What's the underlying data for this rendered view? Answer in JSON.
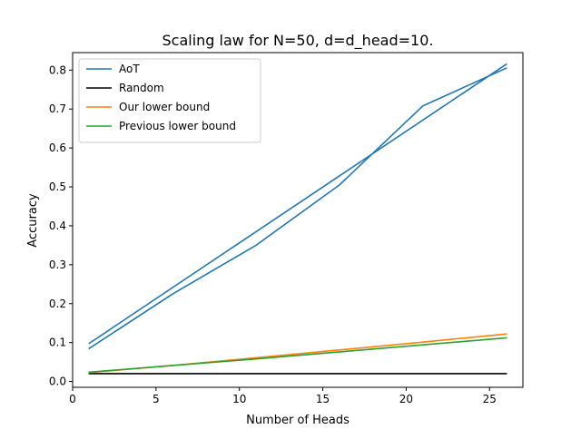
{
  "chart_data": {
    "type": "line",
    "title": "Scaling law for N=50, d=d_head=10.",
    "xlabel": "Number of Heads",
    "ylabel": "Accuracy",
    "xlim": [
      0,
      27
    ],
    "ylim": [
      -0.015,
      0.845
    ],
    "xticks": [
      0,
      5,
      10,
      15,
      20,
      25
    ],
    "yticks": [
      0.0,
      0.1,
      0.2,
      0.3,
      0.4,
      0.5,
      0.6,
      0.7,
      0.8
    ],
    "grid": false,
    "legend_position": "top-left",
    "series": [
      {
        "name": "AoT",
        "color": "#1f77b4",
        "x": [
          1,
          6,
          11,
          16,
          21,
          26
        ],
        "y": [
          0.085,
          0.225,
          0.35,
          0.505,
          0.708,
          0.805
        ]
      },
      {
        "name": "",
        "color": "#1f77b4",
        "x": [
          1,
          26
        ],
        "y": [
          0.098,
          0.815
        ]
      },
      {
        "name": "Random",
        "color": "#000000",
        "x": [
          1,
          26
        ],
        "y": [
          0.02,
          0.02
        ]
      },
      {
        "name": "Our lower bound",
        "color": "#ff7f0e",
        "x": [
          1,
          6,
          11,
          16,
          21,
          26
        ],
        "y": [
          0.023,
          0.041,
          0.061,
          0.081,
          0.101,
          0.122
        ]
      },
      {
        "name": "Previous lower bound",
        "color": "#2ca02c",
        "x": [
          1,
          6,
          11,
          16,
          21,
          26
        ],
        "y": [
          0.024,
          0.041,
          0.058,
          0.076,
          0.094,
          0.112
        ]
      }
    ]
  }
}
